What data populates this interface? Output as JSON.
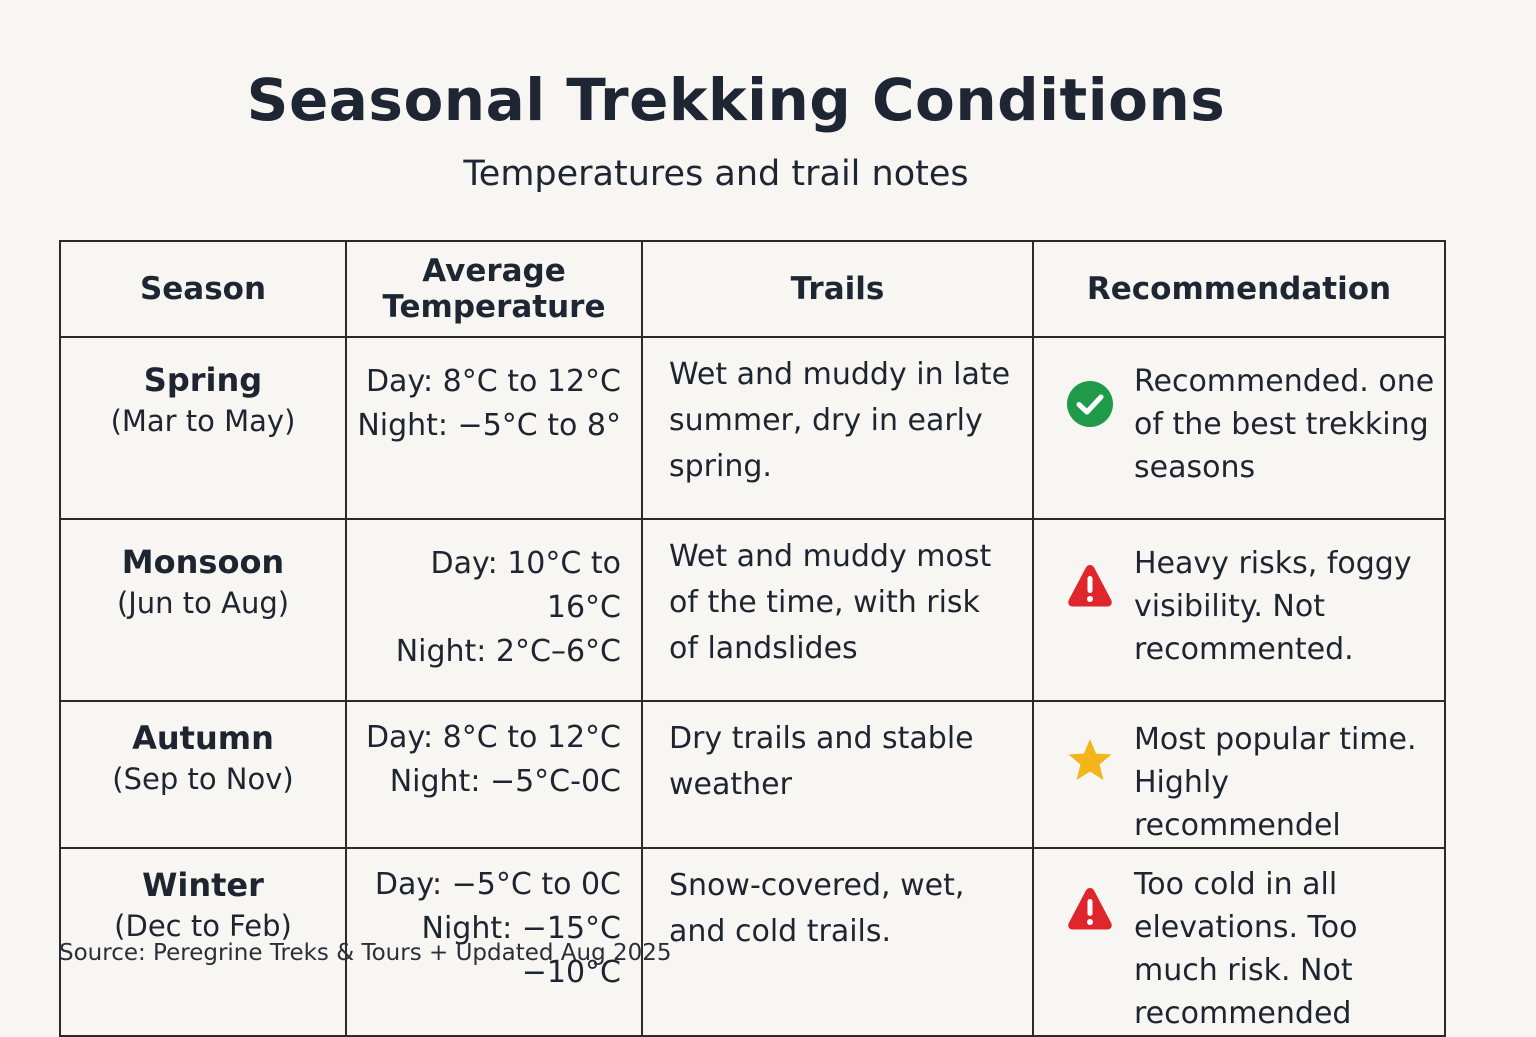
{
  "title": "Seasonal Trekking Conditions",
  "subtitle": "Temperatures and trail notes",
  "table": {
    "headers": {
      "season": "Season",
      "avg_temp_line1": "Average",
      "avg_temp_line2": "Temperature",
      "trails": "Trails",
      "recommendation": "Recommendation"
    },
    "rows": [
      {
        "season": "Spring",
        "months": "(Mar to May)",
        "day": "Day: 8°C to 12°C",
        "night": "Night: −5°C to 8°",
        "trails": "Wet and muddy in late summer, dry in early spring.",
        "icon": "check-circle-icon",
        "recommendation": "Recommended. one of the best trekking seasons"
      },
      {
        "season": "Monsoon",
        "months": "(Jun to Aug)",
        "day": "Day: 10°C to 16°C",
        "night": "Night: 2°C–6°C",
        "trails": "Wet and muddy most of the time, with risk of landslides",
        "icon": "warning-icon",
        "recommendation": "Heavy risks, foggy visibility. Not recommented."
      },
      {
        "season": "Autumn",
        "months": "(Sep to Nov)",
        "day": "Day: 8°C to 12°C",
        "night": "Night: −5°C-0C",
        "trails": "Dry trails and stable weather",
        "icon": "star-icon",
        "recommendation": "Most popular time. Highly recommendel"
      },
      {
        "season": "Winter",
        "months": "(Dec to Feb)",
        "day": "Day: −5°C to 0C",
        "night": "Night: −15°C −10°C",
        "trails": "Snow-covered, wet, and cold trails.",
        "icon": "warning-icon",
        "recommendation": "Too cold in all elevations. Too much risk. Not recommended"
      }
    ]
  },
  "source": "Source: Peregrine Treks & Tours + Updated Aug 2025",
  "colors": {
    "check": "#1f9a4b",
    "warning": "#e0262d",
    "star": "#f2b51c"
  }
}
